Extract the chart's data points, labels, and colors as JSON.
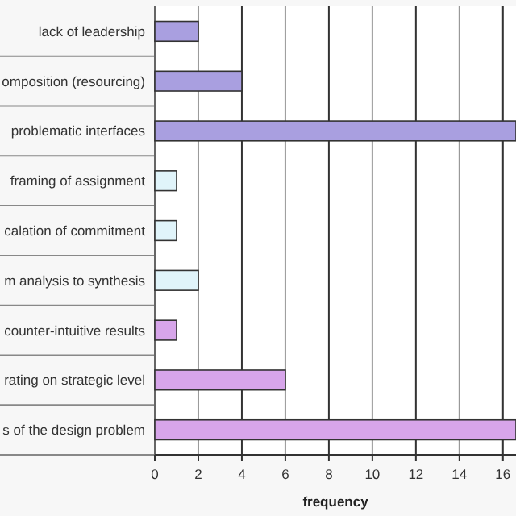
{
  "chart_data": {
    "type": "bar",
    "orientation": "horizontal",
    "xlabel": "frequency",
    "categories": [
      "lack of leadership",
      "omposition (resourcing)",
      "problematic interfaces",
      "framing of assignment",
      "calation of commitment",
      "m analysis to synthesis",
      "counter-intuitive results",
      "rating on strategic level",
      "s of the design problem"
    ],
    "values": [
      2,
      4,
      16.6,
      1,
      1,
      2,
      1,
      6,
      16.6
    ],
    "colors": [
      "#a99fe0",
      "#a99fe0",
      "#a99fe0",
      "#e0f4fa",
      "#e0f4fa",
      "#e0f4fa",
      "#d7a5ea",
      "#d7a5ea",
      "#d7a5ea"
    ],
    "xlim": [
      0,
      16.6
    ],
    "xticks": [
      0,
      2,
      4,
      6,
      8,
      10,
      12,
      14,
      16
    ],
    "grid": "x"
  }
}
